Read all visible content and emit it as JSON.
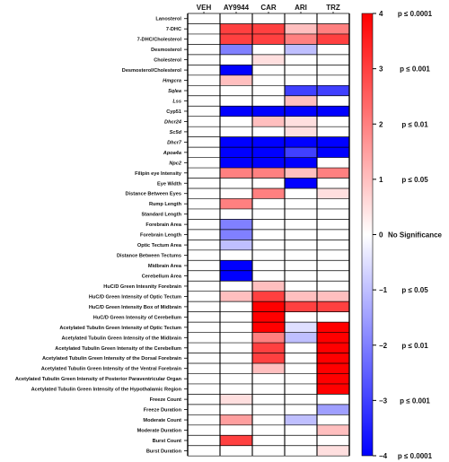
{
  "chart_data": {
    "type": "heatmap",
    "columns": [
      "VEH",
      "AY9944",
      "CAR",
      "ARI",
      "TRZ"
    ],
    "rows": [
      {
        "label": "Lanosterol",
        "italic": false,
        "values": [
          0,
          0,
          0,
          0,
          0
        ]
      },
      {
        "label": "7-DHC",
        "italic": false,
        "values": [
          0,
          3,
          3,
          1,
          2
        ]
      },
      {
        "label": "7-DHC/Cholesterol",
        "italic": false,
        "values": [
          0,
          3,
          3,
          2,
          3
        ]
      },
      {
        "label": "Desmosterol",
        "italic": false,
        "values": [
          0,
          -2,
          0,
          -1,
          0
        ]
      },
      {
        "label": "Cholesterol",
        "italic": false,
        "values": [
          0,
          0,
          0.5,
          0,
          0
        ]
      },
      {
        "label": "Desmosterol/Cholesterol",
        "italic": false,
        "values": [
          0,
          -4,
          0,
          0,
          0
        ]
      },
      {
        "label": "Hmgcra",
        "italic": true,
        "values": [
          0,
          1,
          0,
          0,
          0
        ]
      },
      {
        "label": "Sqlea",
        "italic": true,
        "values": [
          0,
          0,
          0,
          -3,
          -3
        ]
      },
      {
        "label": "Lss",
        "italic": true,
        "values": [
          0,
          0,
          0,
          1,
          0
        ]
      },
      {
        "label": "Cyp51",
        "italic": false,
        "values": [
          0,
          -4,
          -4,
          -4,
          -4
        ]
      },
      {
        "label": "Dhcr24",
        "italic": true,
        "values": [
          0,
          0,
          1,
          0.5,
          0
        ]
      },
      {
        "label": "Sc5d",
        "italic": true,
        "values": [
          0,
          0,
          0,
          0.5,
          0
        ]
      },
      {
        "label": "Dhcr7",
        "italic": true,
        "values": [
          0,
          -4,
          -4,
          -4,
          -4
        ]
      },
      {
        "label": "Apoa4a",
        "italic": true,
        "values": [
          0,
          -4,
          -4,
          -3,
          -4
        ]
      },
      {
        "label": "Npc2",
        "italic": true,
        "values": [
          0,
          -4,
          -4,
          -4,
          0
        ]
      },
      {
        "label": "Filipin eye Intensity",
        "italic": false,
        "values": [
          0,
          2,
          2,
          1,
          2
        ]
      },
      {
        "label": "Eye Width",
        "italic": false,
        "values": [
          0,
          0,
          0,
          -4,
          0
        ]
      },
      {
        "label": "Distance Between Eyes",
        "italic": false,
        "values": [
          0,
          0,
          2,
          0,
          0.5
        ]
      },
      {
        "label": "Rump Length",
        "italic": false,
        "values": [
          0,
          2,
          0,
          0,
          0
        ]
      },
      {
        "label": "Standard Length",
        "italic": false,
        "values": [
          0,
          0,
          0,
          0,
          0
        ]
      },
      {
        "label": "Forebrain Area",
        "italic": false,
        "values": [
          0,
          -2,
          0,
          0,
          0
        ]
      },
      {
        "label": "Forebrain Length",
        "italic": false,
        "values": [
          0,
          -2,
          0,
          0,
          0
        ]
      },
      {
        "label": "Optic Tectum Area",
        "italic": false,
        "values": [
          0,
          -1,
          0,
          0,
          0
        ]
      },
      {
        "label": "Distance Between Tectums",
        "italic": false,
        "values": [
          0,
          0,
          0,
          0,
          0
        ]
      },
      {
        "label": "Midbrain Area",
        "italic": false,
        "values": [
          0,
          -4,
          0,
          0,
          0
        ]
      },
      {
        "label": "Cerebellum Area",
        "italic": false,
        "values": [
          0,
          -4,
          0,
          0,
          0
        ]
      },
      {
        "label": "HuC/D Green Intesnity Forebrain",
        "italic": false,
        "values": [
          0,
          0,
          1,
          0,
          0
        ]
      },
      {
        "label": "HuC/D Green Intensity of Optic Tectum",
        "italic": false,
        "values": [
          0,
          1,
          3,
          1,
          1
        ]
      },
      {
        "label": "HuC/D Green Intensity Box of Midbrain",
        "italic": false,
        "values": [
          0,
          0,
          4,
          3,
          3
        ]
      },
      {
        "label": "HuC/D Green Intensity of Cerebellum",
        "italic": false,
        "values": [
          0,
          0,
          4,
          0,
          0
        ]
      },
      {
        "label": "Acetylated Tubulin Green Intensity of Optic Tectum",
        "italic": false,
        "values": [
          0,
          0,
          4,
          -0.5,
          4
        ]
      },
      {
        "label": "Acetylated Tubulin Green Intensity of the Midbrain",
        "italic": false,
        "values": [
          0,
          0,
          2,
          -1,
          4
        ]
      },
      {
        "label": "Acetylated Tubulin Green Intensity of the Cerebellum",
        "italic": false,
        "values": [
          0,
          0,
          3,
          0,
          4
        ]
      },
      {
        "label": "Acetylated Tubulin Green Intensity of the Dorsal Forebrain",
        "italic": false,
        "values": [
          0,
          0,
          3,
          0,
          4
        ]
      },
      {
        "label": "Acetylated Tubulin Green Intensity of the Ventral Forebrain",
        "italic": false,
        "values": [
          0,
          0,
          1,
          0,
          4
        ]
      },
      {
        "label": "Acetylated Tubulin Green Intensity of Posterior Paraventricular Organ",
        "italic": false,
        "values": [
          0,
          0,
          0,
          0,
          4
        ]
      },
      {
        "label": "Acetylated Tubulin Green Intensity of the Hypothalamic Region",
        "italic": false,
        "values": [
          0,
          0,
          0,
          0,
          4
        ]
      },
      {
        "label": "Freeze Count",
        "italic": false,
        "values": [
          0,
          0.5,
          0,
          0,
          0
        ]
      },
      {
        "label": "Freeze Duration",
        "italic": false,
        "values": [
          0,
          0,
          0,
          0,
          -1.5
        ]
      },
      {
        "label": "Moderate Count",
        "italic": false,
        "values": [
          0,
          1.5,
          0,
          -1,
          0
        ]
      },
      {
        "label": "Moderate Duration",
        "italic": false,
        "values": [
          0,
          0,
          0,
          0,
          1
        ]
      },
      {
        "label": "Burst Count",
        "italic": false,
        "values": [
          0,
          3,
          0,
          0,
          0
        ]
      },
      {
        "label": "Burst Duration",
        "italic": false,
        "values": [
          0,
          0,
          0,
          0,
          0.5
        ]
      }
    ],
    "colorbar": {
      "min": -4,
      "max": 4,
      "ticks": [
        4,
        3,
        2,
        1,
        0,
        -1,
        -2,
        -3,
        -4
      ],
      "low_color": "#0000ff",
      "mid_color": "#ffffff",
      "high_color": "#ff0000"
    },
    "significance_labels": [
      {
        "tick": 4,
        "text": "p ≤ 0.0001"
      },
      {
        "tick": 3,
        "text": "p ≤ 0.001"
      },
      {
        "tick": 2,
        "text": "p ≤ 0.01"
      },
      {
        "tick": 1,
        "text": "p ≤ 0.05"
      },
      {
        "tick": 0,
        "text": "No Significance"
      },
      {
        "tick": -1,
        "text": "p ≤ 0.05"
      },
      {
        "tick": -2,
        "text": "p ≤ 0.01"
      },
      {
        "tick": -3,
        "text": "p ≤ 0.001"
      },
      {
        "tick": -4,
        "text": "p ≤ 0.0001"
      }
    ]
  }
}
